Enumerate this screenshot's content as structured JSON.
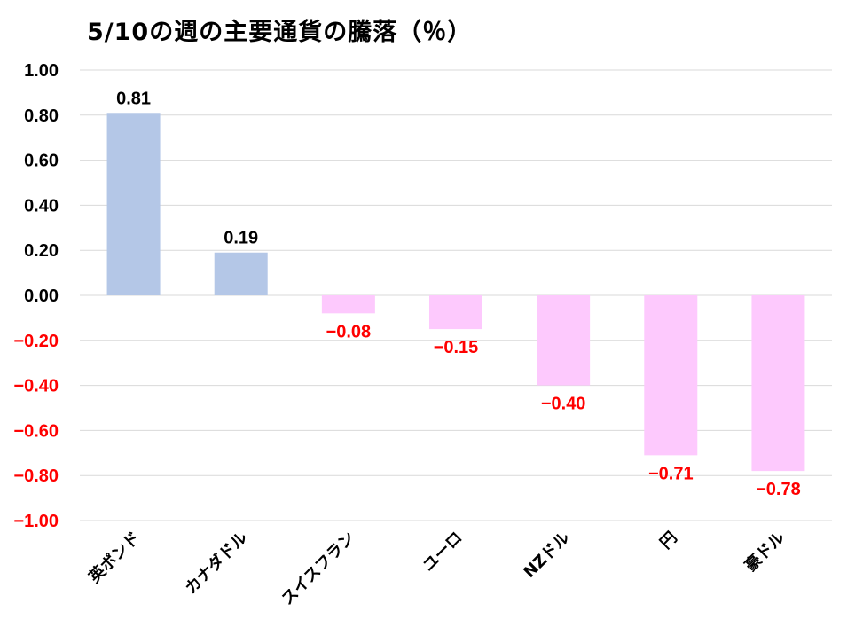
{
  "chart_data": {
    "type": "bar",
    "title": "5/10の週の主要通貨の騰落（％）",
    "categories": [
      "英ポンド",
      "カナダドル",
      "スイスフラン",
      "ユーロ",
      "NZドル",
      "円",
      "豪ドル"
    ],
    "values": [
      0.81,
      0.19,
      -0.08,
      -0.15,
      -0.4,
      -0.71,
      -0.78
    ],
    "value_labels": [
      "0.81",
      "0.19",
      "−0.08",
      "−0.15",
      "−0.40",
      "−0.71",
      "−0.78"
    ],
    "y_ticks": [
      1.0,
      0.8,
      0.6,
      0.4,
      0.2,
      0.0,
      -0.2,
      -0.4,
      -0.6,
      -0.8,
      -1.0
    ],
    "y_tick_labels": [
      "1.00",
      "0.80",
      "0.60",
      "0.40",
      "0.20",
      "0.00",
      "−0.20",
      "−0.40",
      "−0.60",
      "−0.80",
      "−1.00"
    ],
    "ylim": [
      -1.0,
      1.0
    ],
    "xlabel": "",
    "ylabel": "",
    "grid": true,
    "legend": "none",
    "colors": {
      "positive_bar": "#b4c7e7",
      "negative_bar": "#fdc9fd",
      "positive_text": "#000000",
      "negative_text": "#ff0000",
      "grid": "#d9d9d9"
    }
  }
}
